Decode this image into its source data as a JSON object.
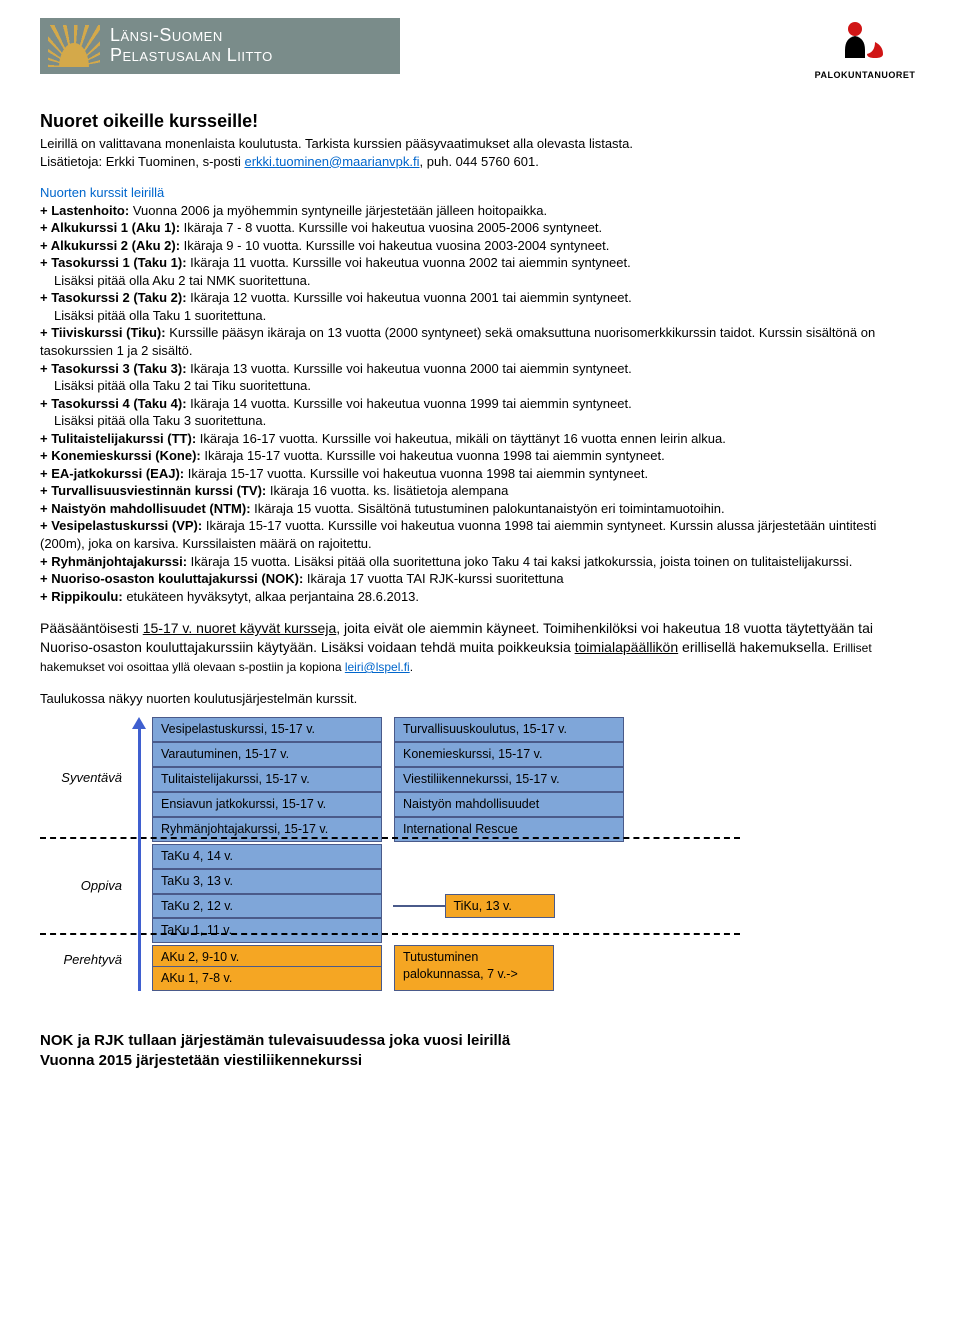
{
  "header": {
    "org_line1": "Länsi-Suomen",
    "org_line2": "Pelastusalan Liitto",
    "right_label": "PALOKUNTANUORET"
  },
  "title": "Nuoret oikeille kursseille!",
  "intro": {
    "line1": "Leirillä on valittavana monenlaista koulutusta. Tarkista kurssien pääsyvaatimukset alla olevasta listasta.",
    "line2_a": "Lisätietoja: Erkki Tuominen, s-posti ",
    "email": "erkki.tuominen@maarianvpk.fi",
    "line2_b": ", puh. 044 5760 601."
  },
  "sec_lead": "Nuorten kurssit leirillä",
  "courses": [
    {
      "b": "+ Lastenhoito:",
      "t": " Vuonna 2006 ja myöhemmin syntyneille järjestetään jälleen hoitopaikka."
    },
    {
      "b": " + Alkukurssi 1 (Aku 1):",
      "t": " Ikäraja 7 - 8 vuotta. Kurssille voi hakeutua vuosina 2005-2006 syntyneet."
    },
    {
      "b": "+ Alkukurssi 2 (Aku 2):",
      "t": " Ikäraja 9 - 10 vuotta. Kurssille voi hakeutua vuosina 2003-2004 syntyneet."
    },
    {
      "b": "+ Tasokurssi 1 (Taku 1):",
      "t": " Ikäraja 11 vuotta. Kurssille voi hakeutua vuonna 2002 tai aiemmin syntyneet.",
      "ind": "Lisäksi pitää olla Aku 2 tai NMK suoritettuna."
    },
    {
      "b": "+ Tasokurssi 2 (Taku 2):",
      "t": " Ikäraja 12 vuotta. Kurssille voi hakeutua vuonna 2001 tai aiemmin syntyneet.",
      "ind": "Lisäksi pitää olla Taku 1 suoritettuna."
    },
    {
      "b": "+ Tiiviskurssi (Tiku):",
      "t": " Kurssille pääsyn ikäraja on 13 vuotta (2000 syntyneet) sekä omaksuttuna nuorisomerkkikurssin taidot. Kurssin sisältönä on tasokurssien 1 ja 2 sisältö."
    },
    {
      "b": "+ Tasokurssi 3 (Taku 3):",
      "t": " Ikäraja 13 vuotta. Kurssille voi hakeutua vuonna 2000 tai aiemmin syntyneet.",
      "ind": "Lisäksi pitää olla Taku 2 tai Tiku suoritettuna."
    },
    {
      "b": "+ Tasokurssi 4 (Taku 4):",
      "t": " Ikäraja 14 vuotta. Kurssille voi hakeutua vuonna 1999 tai aiemmin syntyneet.",
      "ind": "Lisäksi pitää olla Taku 3 suoritettuna."
    },
    {
      "b": "+ Tulitaistelijakurssi (TT):",
      "t": " Ikäraja 16-17 vuotta. Kurssille voi hakeutua, mikäli on täyttänyt 16 vuotta ennen leirin alkua."
    },
    {
      "b": "+ Konemieskurssi (Kone):",
      "t": " Ikäraja 15-17 vuotta. Kurssille voi hakeutua vuonna 1998 tai aiemmin syntyneet."
    },
    {
      "b": "+ EA-jatkokurssi (EAJ):",
      "t": " Ikäraja 15-17 vuotta. Kurssille voi hakeutua vuonna 1998 tai aiemmin syntyneet."
    },
    {
      "b": "+ Turvallisuusviestinnän kurssi (TV):",
      "t": " Ikäraja 16 vuotta. ks. lisätietoja alempana"
    },
    {
      "b": "+ Naistyön mahdollisuudet (NTM):",
      "t": " Ikäraja 15 vuotta. Sisältönä tutustuminen palokuntanaistyön eri toimintamuotoihin."
    },
    {
      "b": "+ Vesipelastuskurssi (VP):",
      "t": " Ikäraja 15-17 vuotta. Kurssille voi hakeutua vuonna 1998 tai aiemmin syntyneet. Kurssin alussa järjestetään uintitesti (200m), joka on karsiva. Kurssilaisten määrä on rajoitettu."
    },
    {
      "b": "+ Ryhmänjohtajakurssi:",
      "t": " Ikäraja 15 vuotta. Lisäksi pitää olla suoritettuna joko Taku 4 tai kaksi jatkokurssia, joista toinen on tulitaistelijakurssi."
    },
    {
      "b": "+ Nuoriso-osaston kouluttajakurssi (NOK):",
      "t": " Ikäraja 17 vuotta TAI RJK-kurssi suoritettuna"
    },
    {
      "b": "+ Rippikoulu:",
      "t": " etukäteen hyväksytyt, alkaa perjantaina 28.6.2013."
    }
  ],
  "para": {
    "a1": "Pääsääntöisesti ",
    "u1": "15-17 v. nuoret käyvät kursseja",
    "a2": ", joita eivät ole aiemmin käyneet. Toimihenkilöksi voi hakeutua 18 vuotta täytettyään tai Nuoriso-osaston kouluttajakurssiin käytyään. Lisäksi voidaan tehdä muita poikkeuksia ",
    "u2": "toimialapäällikön",
    "a3": " erillisellä hakemuksella. ",
    "small": "Erilliset hakemukset voi osoittaa yllä olevaan s-postiin ja kopiona ",
    "link": "leiri@lspel.fi",
    "dot": "."
  },
  "table_caption": "Taulukossa näkyy nuorten koulutusjärjestelmän kurssit.",
  "diagram": {
    "levels": [
      "Syventävä",
      "Oppiva",
      "Perehtyvä"
    ],
    "level_heights": [
      120,
      96,
      52
    ],
    "syv_a": [
      "Vesipelastuskurssi, 15-17 v.",
      "Varautuminen, 15-17 v.",
      "Tulitaistelijakurssi, 15-17 v.",
      "Ensiavun jatkokurssi, 15-17 v.",
      "Ryhmänjohtajakurssi, 15-17 v."
    ],
    "syv_b": [
      "Turvallisuuskoulutus, 15-17 v.",
      "Konemieskurssi, 15-17 v.",
      "Viestiliikennekurssi, 15-17 v.",
      "Naistyön mahdollisuudet",
      "International Rescue"
    ],
    "opp_a": [
      "TaKu 4, 14 v.",
      "TaKu 3, 13 v.",
      "TaKu 2, 12 v.",
      "TaKu 1, 11 v."
    ],
    "opp_tiku": "TiKu, 13 v.",
    "per_a": [
      "AKu 2, 9-10 v.",
      "AKu 1, 7-8 v."
    ],
    "per_b": "Tutustuminen palokunnassa, 7 v.->",
    "colors": {
      "blue": "#7fa6d9",
      "orange": "#f5a623",
      "border": "#4a5a8a",
      "arrow": "#3f5fcf"
    }
  },
  "bottom": {
    "l1": "NOK ja RJK tullaan järjestämän tulevaisuudessa joka vuosi leirillä",
    "l2": "Vuonna 2015 järjestetään viestiliikennekurssi"
  }
}
